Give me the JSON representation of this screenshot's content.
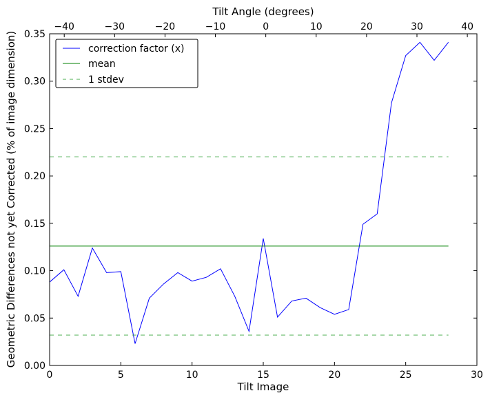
{
  "chart_data": {
    "type": "line",
    "title": "",
    "xlabel": "Tilt Image",
    "ylabel": "Geometric Differences not yet Corrected (% of image dimension)",
    "top_xlabel": "Tilt Angle (degrees)",
    "xlim": [
      0,
      30
    ],
    "ylim": [
      0,
      0.35
    ],
    "top_xlim": [
      -42.9,
      41.9
    ],
    "xticks": [
      0,
      5,
      10,
      15,
      20,
      25,
      30
    ],
    "yticks": [
      0.0,
      0.05,
      0.1,
      0.15,
      0.2,
      0.25,
      0.3,
      0.35
    ],
    "top_xticks": [
      -40,
      -30,
      -20,
      -10,
      0,
      10,
      20,
      30,
      40
    ],
    "xtick_labels": [
      "0",
      "5",
      "10",
      "15",
      "20",
      "25",
      "30"
    ],
    "ytick_labels": [
      "0.00",
      "0.05",
      "0.10",
      "0.15",
      "0.20",
      "0.25",
      "0.30",
      "0.35"
    ],
    "top_xtick_labels": [
      "−40",
      "−30",
      "−20",
      "−10",
      "0",
      "10",
      "20",
      "30",
      "40"
    ],
    "grid": false,
    "legend_position": "top-left",
    "series": [
      {
        "name": "correction factor (x)",
        "color": "#0000ff",
        "style": "solid",
        "x": [
          0,
          1,
          2,
          3,
          4,
          5,
          6,
          7,
          8,
          9,
          10,
          11,
          12,
          13,
          14,
          15,
          16,
          17,
          18,
          19,
          20,
          21,
          22,
          23,
          24,
          25,
          26,
          27,
          28
        ],
        "values": [
          0.088,
          0.101,
          0.073,
          0.124,
          0.098,
          0.099,
          0.023,
          0.071,
          0.086,
          0.098,
          0.089,
          0.093,
          0.102,
          0.073,
          0.036,
          0.134,
          0.051,
          0.068,
          0.071,
          0.061,
          0.054,
          0.059,
          0.149,
          0.16,
          0.277,
          0.327,
          0.341,
          0.322,
          0.341
        ]
      },
      {
        "name": "mean",
        "color": "#008000",
        "style": "solid",
        "x": [
          0,
          28
        ],
        "values": [
          0.126,
          0.126
        ]
      },
      {
        "name": "1 stdev",
        "color": "#4caf50",
        "style": "dashed",
        "x": [
          0,
          28
        ],
        "values": [
          0.22,
          0.22
        ],
        "x2": [
          0,
          28
        ],
        "values2": [
          0.032,
          0.032
        ]
      }
    ]
  }
}
